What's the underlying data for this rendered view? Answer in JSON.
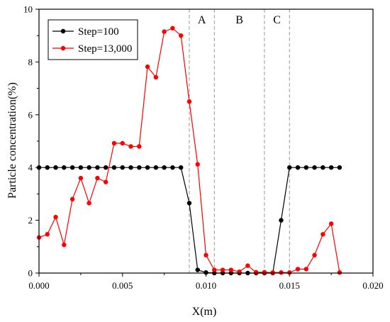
{
  "chart_data": {
    "type": "line",
    "title": "",
    "xlabel": "X(m)",
    "ylabel": "Particle concentration(%)",
    "xlim": [
      0,
      0.02
    ],
    "ylim": [
      0,
      10
    ],
    "x_ticks": [
      0,
      0.005,
      0.01,
      0.015,
      0.02
    ],
    "x_tick_labels": [
      "0.000",
      "0.005",
      "0.010",
      "0.015",
      "0.020"
    ],
    "y_ticks": [
      0,
      2,
      4,
      6,
      8,
      10
    ],
    "y_tick_labels": [
      "0",
      "2",
      "4",
      "6",
      "8",
      "10"
    ],
    "grid": false,
    "legend_position": "top-left",
    "series": [
      {
        "name": "Step=100",
        "color": "#000000",
        "x": [
          0.0,
          0.0005,
          0.001,
          0.0015,
          0.002,
          0.0025,
          0.003,
          0.0035,
          0.004,
          0.0045,
          0.005,
          0.0055,
          0.006,
          0.0065,
          0.007,
          0.0075,
          0.008,
          0.0085,
          0.009,
          0.0095,
          0.01,
          0.0105,
          0.011,
          0.0115,
          0.012,
          0.0125,
          0.013,
          0.0135,
          0.014,
          0.0145,
          0.015,
          0.0155,
          0.016,
          0.0165,
          0.017,
          0.0175,
          0.018
        ],
        "y": [
          4.0,
          4.0,
          4.0,
          4.0,
          4.0,
          4.0,
          4.0,
          4.0,
          4.0,
          4.0,
          4.0,
          4.0,
          4.0,
          4.0,
          4.0,
          4.0,
          4.0,
          4.0,
          2.65,
          0.12,
          0.02,
          0.0,
          0.0,
          0.0,
          0.0,
          0.0,
          0.0,
          0.0,
          0.0,
          2.0,
          4.0,
          4.0,
          4.0,
          4.0,
          4.0,
          4.0,
          4.0
        ]
      },
      {
        "name": "Step=13,000",
        "color": "#ff0000",
        "x": [
          0.0,
          0.0005,
          0.001,
          0.0015,
          0.002,
          0.0025,
          0.003,
          0.0035,
          0.004,
          0.0045,
          0.005,
          0.0055,
          0.006,
          0.0065,
          0.007,
          0.0075,
          0.008,
          0.0085,
          0.009,
          0.0095,
          0.01,
          0.0105,
          0.011,
          0.0115,
          0.012,
          0.0125,
          0.013,
          0.0135,
          0.014,
          0.0145,
          0.015,
          0.0155,
          0.016,
          0.0165,
          0.017,
          0.0175,
          0.018
        ],
        "y": [
          1.35,
          1.47,
          2.12,
          1.07,
          2.8,
          3.6,
          2.65,
          3.6,
          3.45,
          4.92,
          4.92,
          4.8,
          4.8,
          7.82,
          7.42,
          9.15,
          9.28,
          9.0,
          6.5,
          4.12,
          0.68,
          0.12,
          0.12,
          0.12,
          0.05,
          0.28,
          0.03,
          0.03,
          0.02,
          0.02,
          0.02,
          0.15,
          0.15,
          0.68,
          1.47,
          1.87,
          0.02
        ]
      }
    ],
    "reference_lines_x": [
      0.009,
      0.0105,
      0.0135,
      0.015
    ],
    "regions": [
      {
        "label": "A",
        "x": 0.00975
      },
      {
        "label": "B",
        "x": 0.012
      },
      {
        "label": "C",
        "x": 0.01425
      }
    ]
  }
}
